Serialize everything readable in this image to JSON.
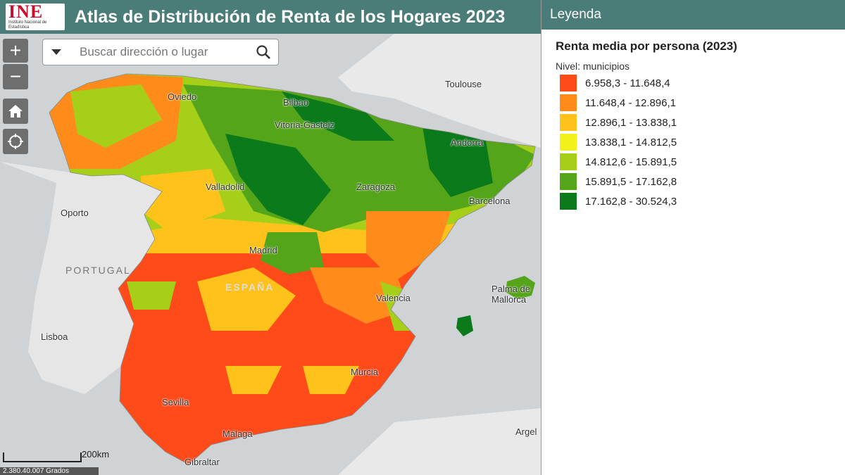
{
  "header": {
    "logo_text": "INE",
    "logo_sub": "Instituto Nacional de Estadística",
    "title": "Atlas de Distribución de Renta de los Hogares 2023"
  },
  "controls": {
    "zoom_in": "+",
    "zoom_out": "−",
    "home_icon": "home-icon",
    "locate_icon": "locate-icon"
  },
  "search": {
    "placeholder": "Buscar dirección o lugar"
  },
  "scale": {
    "label": "200km"
  },
  "coords": {
    "text": "2.380.40.007 Grados"
  },
  "legend": {
    "title": "Leyenda",
    "subtitle": "Renta media por persona (2023)",
    "level": "Nivel: municipios",
    "classes": [
      {
        "range": "6.958,3 - 11.648,4",
        "color": "#ff4a1a"
      },
      {
        "range": "11.648,4 - 12.896,1",
        "color": "#ff8c1a"
      },
      {
        "range": "12.896,1 - 13.838,1",
        "color": "#ffc21a"
      },
      {
        "range": "13.838,1 - 14.812,5",
        "color": "#f2f21a"
      },
      {
        "range": "14.812,6 - 15.891,5",
        "color": "#a6cf1a"
      },
      {
        "range": "15.891,5 - 17.162,8",
        "color": "#55a51a"
      },
      {
        "range": "17.162,8 - 30.524,3",
        "color": "#0a7a1a"
      }
    ]
  },
  "places": {
    "oviedo": "Oviedo",
    "bilbao": "Bilbao",
    "vitoria": "Vitoria-Gasteiz",
    "toulouse": "Toulouse",
    "andorra": "Andorra",
    "valladolid": "Valladolid",
    "zaragoza": "Zaragoza",
    "barcelona": "Barcelona",
    "porto": "Oporto",
    "portugal": "PORTUGAL",
    "madrid": "Madrid",
    "espana": "ESPAÑA",
    "valencia": "Valencia",
    "palma": "Palma de Mallorca",
    "lisboa": "Lisboa",
    "murcia": "Murcia",
    "sevilla": "Sevilla",
    "malaga": "Málaga",
    "gibraltar": "Gibraltar",
    "argel": "Argel"
  }
}
